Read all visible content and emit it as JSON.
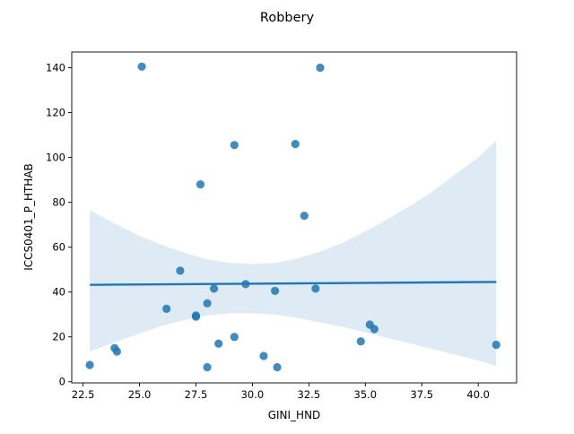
{
  "chart_data": {
    "type": "scatter",
    "title": "Robbery",
    "xlabel": "GINI_HND",
    "ylabel": "ICCS0401_P_HTHAB",
    "xlim": [
      22.0,
      41.7
    ],
    "ylim": [
      -0.5,
      147
    ],
    "xticks": [
      22.5,
      25.0,
      27.5,
      30.0,
      32.5,
      35.0,
      37.5,
      40.0
    ],
    "xtick_labels": [
      "22.5",
      "25.0",
      "27.5",
      "30.0",
      "32.5",
      "35.0",
      "37.5",
      "40.0"
    ],
    "yticks": [
      0,
      20,
      40,
      60,
      80,
      100,
      120,
      140
    ],
    "ytick_labels": [
      "0",
      "20",
      "40",
      "60",
      "80",
      "100",
      "120",
      "140"
    ],
    "grid": false,
    "points": {
      "x": [
        22.8,
        23.9,
        24.0,
        25.1,
        26.2,
        26.8,
        27.5,
        27.5,
        27.7,
        28.0,
        28.0,
        28.3,
        28.5,
        29.2,
        29.2,
        29.7,
        30.5,
        31.0,
        31.1,
        31.9,
        32.3,
        32.8,
        33.0,
        34.8,
        35.2,
        35.4,
        40.8
      ],
      "y": [
        7.5,
        15.0,
        13.5,
        140.5,
        32.5,
        49.5,
        29.5,
        29.0,
        88.0,
        35.0,
        6.5,
        41.5,
        17.0,
        105.5,
        20.0,
        43.5,
        11.5,
        40.5,
        6.5,
        106.0,
        74.0,
        41.5,
        140.0,
        18.0,
        25.5,
        23.5,
        16.5
      ]
    },
    "regression": {
      "x": [
        22.8,
        40.8
      ],
      "y": [
        43.2,
        44.5
      ]
    },
    "confidence_band": {
      "x": [
        22.8,
        24.0,
        25.0,
        26.0,
        27.0,
        28.0,
        29.0,
        30.0,
        31.0,
        32.0,
        33.0,
        34.0,
        35.0,
        36.0,
        37.0,
        38.0,
        39.0,
        40.0,
        40.8
      ],
      "lower": [
        13.5,
        18.0,
        21.5,
        25.0,
        27.5,
        29.5,
        30.5,
        30.5,
        30.0,
        28.5,
        26.5,
        24.5,
        22.0,
        19.5,
        17.0,
        14.5,
        12.0,
        9.5,
        7.0
      ],
      "upper": [
        76.5,
        70.0,
        65.0,
        61.0,
        57.5,
        54.5,
        53.0,
        52.5,
        53.0,
        55.0,
        58.0,
        62.0,
        67.0,
        72.5,
        78.5,
        85.0,
        92.5,
        100.0,
        107.5
      ]
    },
    "colors": {
      "points": "#1f77b4",
      "line": "#1f77b4",
      "band": "#1f77b4"
    }
  }
}
